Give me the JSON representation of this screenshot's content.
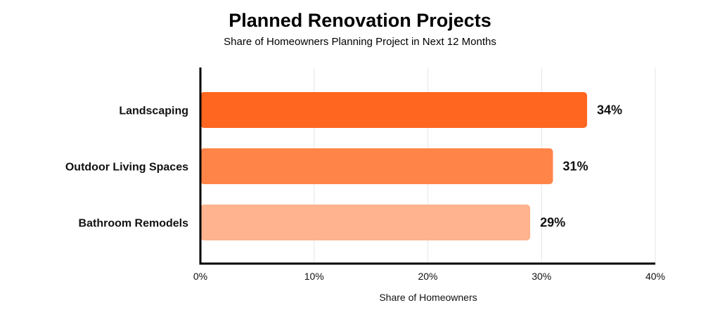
{
  "chart_data": {
    "type": "bar",
    "orientation": "horizontal",
    "title": "Planned Renovation Projects",
    "subtitle": "Share of Homeowners Planning Project in Next 12 Months",
    "xlabel": "Share of Homeowners",
    "ylabel": "",
    "categories": [
      "Landscaping",
      "Outdoor Living Spaces",
      "Bathroom Remodels"
    ],
    "values": [
      34,
      31,
      29
    ],
    "value_labels": [
      "34%",
      "31%",
      "29%"
    ],
    "bar_colors": [
      "#ff6620",
      "#ff8448",
      "#ffb38e"
    ],
    "xlim": [
      0,
      40
    ],
    "xticks": [
      0,
      10,
      20,
      30,
      40
    ],
    "xtick_labels": [
      "0%",
      "10%",
      "20%",
      "30%",
      "40%"
    ],
    "grid": "vertical",
    "legend": "none"
  }
}
